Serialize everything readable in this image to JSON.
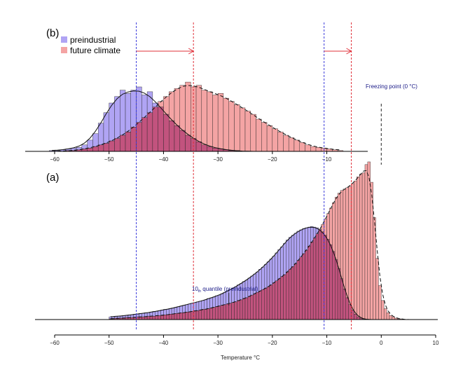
{
  "colors": {
    "preindustrial": "#b0a4f4",
    "future": "#f4a4a4",
    "overlap": "#c2537e",
    "blue_line": "#3b3bdc",
    "red_line": "#e0303a",
    "annotation": "#20208a"
  },
  "legend": {
    "items": [
      {
        "label": "preindustrial",
        "color": "#b0a4f4"
      },
      {
        "label": "future climate",
        "color": "#f4a4a4"
      }
    ],
    "placement": "top-left"
  },
  "annotations": {
    "freezing_point": "Freezing point (0 °C)",
    "quantile_prefix": "10",
    "quantile_sub": "th",
    "quantile_suffix": " quantile (preindustrial)"
  },
  "markers": {
    "pre_q10_a": -45,
    "fut_q10_a": -34.5,
    "pre_q90_a": -10.5,
    "fut_q90_a": -5.5,
    "freezing": 0
  },
  "chart_data": [
    {
      "panel": "(b)",
      "type": "bar",
      "xlim": [
        -61,
        -7
      ],
      "xticks": [
        -60,
        -50,
        -40,
        -30,
        -20,
        -10
      ],
      "bin_start": -61,
      "bin_width": 1,
      "series": [
        {
          "name": "preindustrial",
          "values": [
            1,
            1,
            2,
            3,
            4,
            5,
            8,
            14,
            22,
            35,
            48,
            60,
            68,
            76,
            72,
            76,
            80,
            70,
            74,
            60,
            55,
            46,
            38,
            32,
            26,
            20,
            16,
            12,
            8,
            6,
            4,
            3,
            2,
            1,
            1,
            0,
            0,
            0,
            0,
            0,
            0,
            0,
            0,
            0,
            0,
            0,
            0,
            0,
            0,
            0,
            0,
            0,
            0,
            0
          ]
        },
        {
          "name": "future climate",
          "values": [
            0,
            0,
            0,
            1,
            1,
            2,
            3,
            4,
            6,
            8,
            10,
            13,
            16,
            20,
            24,
            30,
            36,
            42,
            48,
            55,
            62,
            68,
            74,
            78,
            82,
            86,
            80,
            82,
            76,
            74,
            70,
            72,
            66,
            62,
            58,
            54,
            50,
            46,
            40,
            36,
            32,
            28,
            24,
            20,
            17,
            14,
            11,
            8,
            6,
            5,
            4,
            3,
            2,
            1
          ]
        }
      ]
    },
    {
      "panel": "(a)",
      "type": "bar",
      "xlim": [
        -62,
        8
      ],
      "xticks": [
        -60,
        -50,
        -40,
        -30,
        -20,
        -10,
        0,
        10
      ],
      "xlabel": "Temperature °C",
      "bin_start": -50,
      "bin_width": 0.5,
      "series": [
        {
          "name": "preindustrial",
          "values": [
            4,
            4,
            5,
            5,
            5,
            6,
            6,
            7,
            7,
            8,
            8,
            9,
            9,
            10,
            10,
            11,
            12,
            12,
            13,
            14,
            15,
            15,
            16,
            17,
            18,
            19,
            20,
            21,
            22,
            23,
            24,
            25,
            26,
            27,
            28,
            29,
            31,
            32,
            33,
            35,
            36,
            38,
            40,
            42,
            44,
            46,
            48,
            51,
            53,
            56,
            58,
            61,
            64,
            67,
            70,
            74,
            77,
            81,
            85,
            89,
            93,
            98,
            103,
            107,
            112,
            117,
            121,
            124,
            127,
            130,
            132,
            134,
            135,
            136,
            137,
            136,
            135,
            132,
            129,
            124,
            118,
            110,
            100,
            88,
            75,
            60,
            45,
            32,
            22,
            14,
            8,
            4,
            2,
            1,
            0,
            0,
            0,
            0,
            0,
            0,
            0,
            0,
            0,
            0,
            0,
            0,
            0,
            0,
            0,
            0,
            0,
            0,
            0,
            0,
            0,
            0
          ]
        },
        {
          "name": "future climate",
          "values": [
            1,
            1,
            2,
            2,
            2,
            2,
            3,
            3,
            3,
            3,
            4,
            4,
            4,
            4,
            5,
            5,
            5,
            6,
            6,
            6,
            7,
            7,
            8,
            8,
            9,
            9,
            10,
            10,
            11,
            11,
            12,
            13,
            13,
            14,
            15,
            15,
            16,
            17,
            18,
            19,
            20,
            21,
            22,
            23,
            24,
            25,
            26,
            28,
            29,
            31,
            32,
            34,
            36,
            38,
            40,
            42,
            44,
            46,
            48,
            51,
            54,
            57,
            60,
            63,
            66,
            70,
            74,
            78,
            82,
            87,
            92,
            97,
            102,
            108,
            114,
            120,
            126,
            133,
            140,
            148,
            156,
            164,
            172,
            180,
            186,
            190,
            192,
            194,
            196,
            200,
            204,
            210,
            214,
            216,
            228,
            232,
            202,
            150,
            90,
            50,
            28,
            16,
            10,
            6,
            4,
            2,
            1,
            1,
            0,
            0,
            0,
            0,
            0,
            0,
            0,
            0
          ]
        }
      ]
    }
  ]
}
